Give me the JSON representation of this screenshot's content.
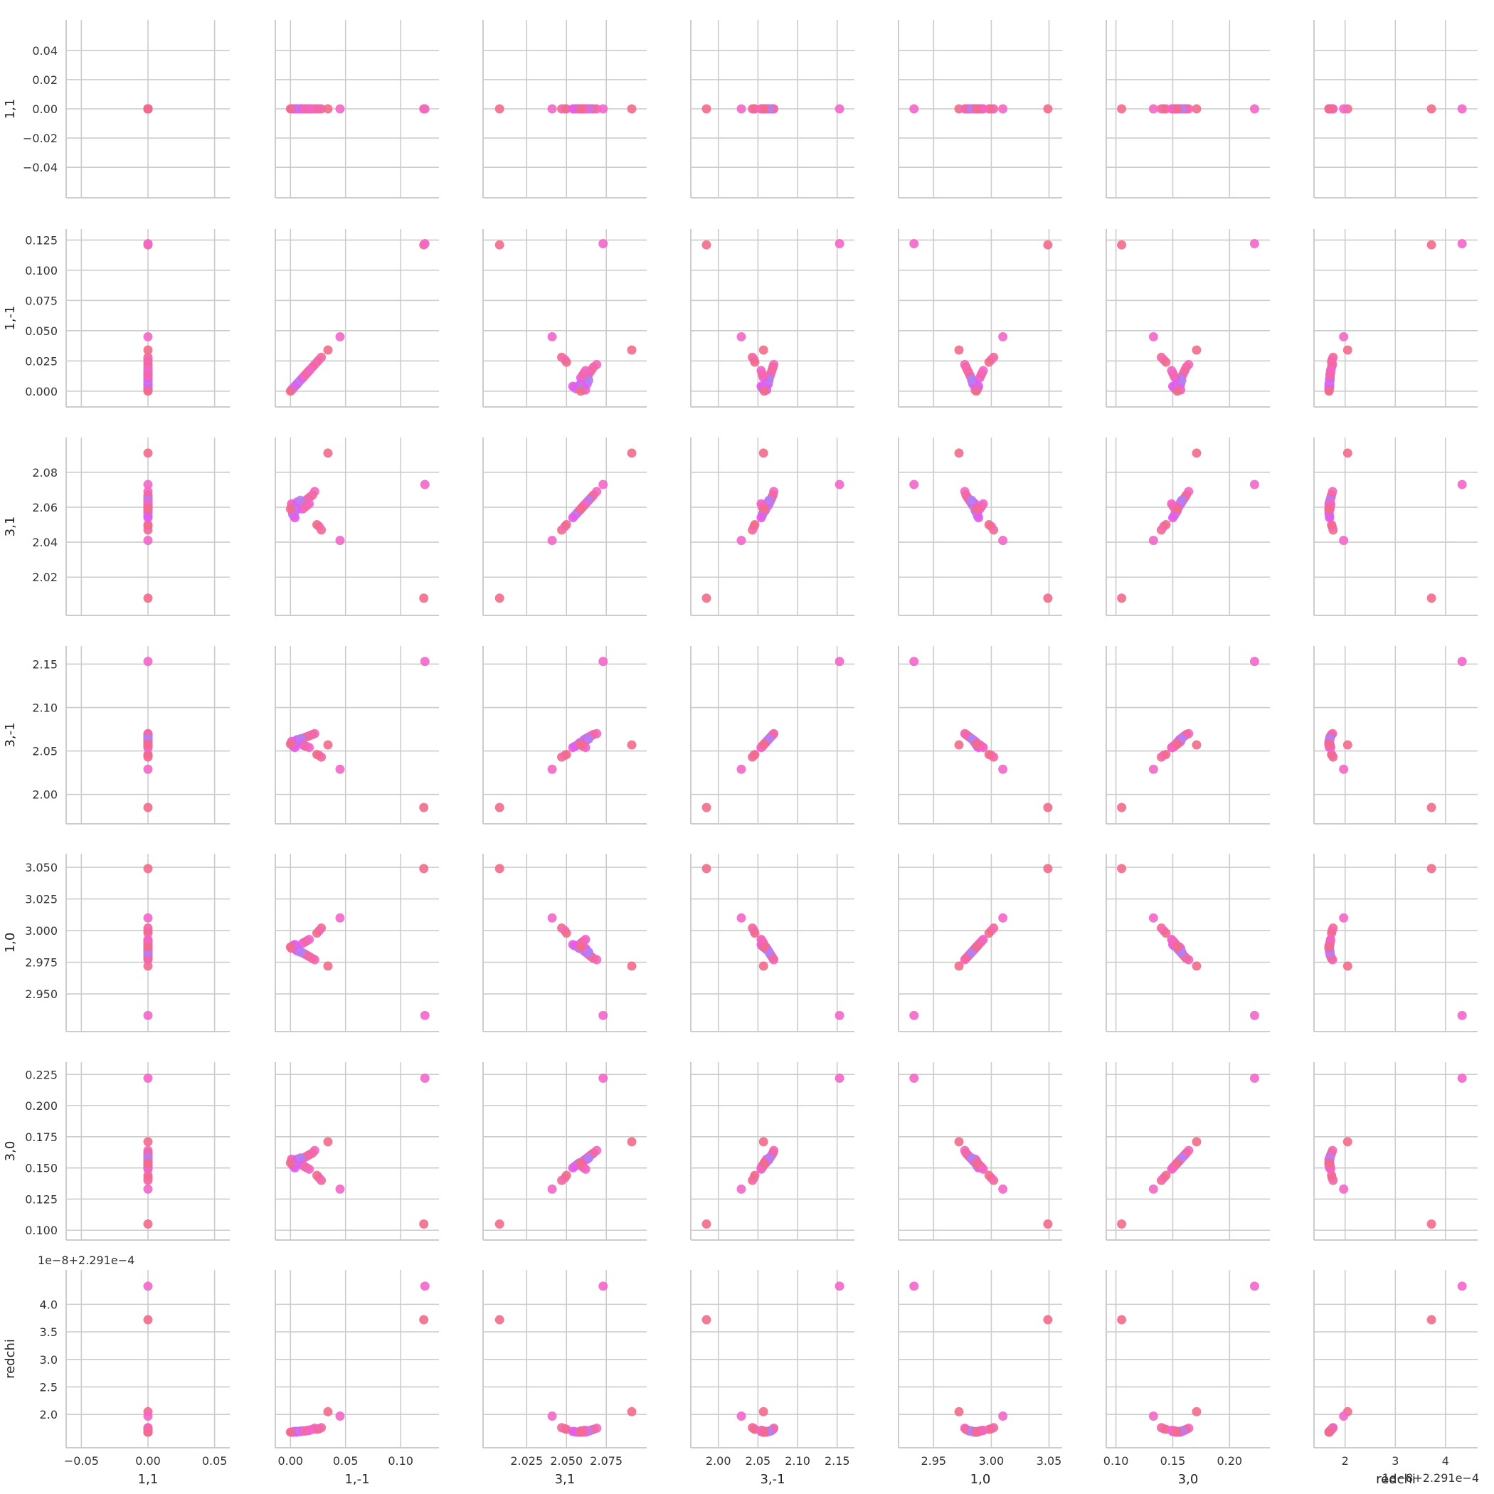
{
  "chart_data": {
    "type": "scatter",
    "layout": "pair-grid",
    "variables": [
      "1,1",
      "1,-1",
      "3,1",
      "3,-1",
      "1,0",
      "3,0",
      "redchi"
    ],
    "axes": [
      {
        "label": "1,1",
        "range": [
          -0.055,
          0.055
        ],
        "ticks": [
          -0.04,
          -0.02,
          0.0,
          0.02,
          0.04
        ],
        "tick_labels": [
          "−0.04",
          "−0.02",
          "0.00",
          "0.02",
          "0.04"
        ],
        "xticks": [
          -0.05,
          0.0,
          0.05
        ],
        "xtick_labels": [
          "−0.05",
          "0.00",
          "0.05"
        ]
      },
      {
        "label": "1,-1",
        "range": [
          -0.006,
          0.127
        ],
        "ticks": [
          0.0,
          0.025,
          0.05,
          0.075,
          0.1,
          0.125
        ],
        "tick_labels": [
          "0.000",
          "0.025",
          "0.050",
          "0.075",
          "0.100",
          "0.125"
        ],
        "xticks": [
          0.0,
          0.05,
          0.1
        ],
        "xtick_labels": [
          "0.00",
          "0.05",
          "0.10"
        ]
      },
      {
        "label": "3,1",
        "range": [
          2.003,
          2.095
        ],
        "ticks": [
          2.02,
          2.04,
          2.06,
          2.08
        ],
        "tick_labels": [
          "2.02",
          "2.04",
          "2.06",
          "2.08"
        ],
        "xticks": [
          2.025,
          2.05,
          2.075
        ],
        "xtick_labels": [
          "2.025",
          "2.050",
          "2.075"
        ]
      },
      {
        "label": "3,-1",
        "range": [
          1.976,
          2.161
        ],
        "ticks": [
          2.0,
          2.05,
          2.1,
          2.15
        ],
        "tick_labels": [
          "2.00",
          "2.05",
          "2.10",
          "2.15"
        ],
        "xticks": [
          2.0,
          2.05,
          2.1,
          2.15
        ],
        "xtick_labels": [
          "2.00",
          "2.05",
          "2.10",
          "2.15"
        ]
      },
      {
        "label": "1,0",
        "range": [
          2.927,
          3.054
        ],
        "ticks": [
          2.95,
          2.975,
          3.0,
          3.025,
          3.05
        ],
        "tick_labels": [
          "2.950",
          "2.975",
          "3.000",
          "3.025",
          "3.050"
        ],
        "xticks": [
          2.95,
          3.0,
          3.05
        ],
        "xtick_labels": [
          "2.95",
          "3.00",
          "3.05"
        ]
      },
      {
        "label": "3,0",
        "range": [
          0.099,
          0.228
        ],
        "ticks": [
          0.1,
          0.125,
          0.15,
          0.175,
          0.2,
          0.225
        ],
        "tick_labels": [
          "0.100",
          "0.125",
          "0.150",
          "0.175",
          "0.200",
          "0.225"
        ],
        "xticks": [
          0.1,
          0.15,
          0.2
        ],
        "xtick_labels": [
          "0.10",
          "0.15",
          "0.20"
        ]
      },
      {
        "label": "redchi",
        "range": [
          1.55,
          4.47
        ],
        "ticks": [
          2.0,
          2.5,
          3.0,
          3.5,
          4.0
        ],
        "tick_labels": [
          "2.0",
          "2.5",
          "3.0",
          "3.5",
          "4.0"
        ],
        "xticks": [
          2,
          3,
          4
        ],
        "xtick_labels": [
          "2",
          "3",
          "4"
        ],
        "offset_text": "1e−8+2.291e−4"
      }
    ],
    "marker_color_ramp": [
      "#f26b8a",
      "#f266c8",
      "#e85ce8",
      "#b47ff2"
    ],
    "series": [
      {
        "points": [
          [
            0,
            0.121,
            2.008,
            1.985,
            3.049,
            0.105,
            3.72
          ],
          [
            0,
            0.122,
            2.073,
            2.153,
            2.933,
            0.222,
            4.33
          ],
          [
            0,
            0.034,
            2.091,
            2.057,
            2.972,
            0.171,
            2.05
          ],
          [
            0,
            0.045,
            2.041,
            2.029,
            3.01,
            0.133,
            1.97
          ],
          [
            0,
            0.028,
            2.047,
            2.043,
            3.002,
            0.14,
            1.76
          ],
          [
            0,
            0.026,
            2.049,
            2.045,
            3.0,
            0.142,
            1.74
          ],
          [
            0,
            0.024,
            2.05,
            2.046,
            2.998,
            0.144,
            1.73
          ],
          [
            0,
            0.022,
            2.069,
            2.07,
            2.977,
            0.164,
            1.75
          ],
          [
            0,
            0.02,
            2.067,
            2.069,
            2.978,
            0.162,
            1.73
          ],
          [
            0,
            0.018,
            2.066,
            2.068,
            2.979,
            0.161,
            1.72
          ],
          [
            0,
            0.016,
            2.065,
            2.067,
            2.98,
            0.16,
            1.71
          ],
          [
            0,
            0.014,
            2.064,
            2.066,
            2.981,
            0.159,
            1.7
          ],
          [
            0,
            0.012,
            2.063,
            2.065,
            2.982,
            0.158,
            1.7
          ],
          [
            0,
            0.01,
            2.062,
            2.064,
            2.983,
            0.157,
            1.69
          ],
          [
            0,
            0.008,
            2.061,
            2.063,
            2.984,
            0.156,
            1.69
          ],
          [
            0,
            0.007,
            2.06,
            2.061,
            2.985,
            0.155,
            1.69
          ],
          [
            0,
            0.006,
            2.059,
            2.06,
            2.986,
            0.154,
            1.68
          ],
          [
            0,
            0.005,
            2.058,
            2.059,
            2.986,
            0.154,
            1.68
          ],
          [
            0,
            0.004,
            2.058,
            2.058,
            2.987,
            0.153,
            1.68
          ],
          [
            0,
            0.003,
            2.057,
            2.057,
            2.987,
            0.153,
            1.68
          ],
          [
            0,
            0.002,
            2.059,
            2.058,
            2.988,
            0.154,
            1.68
          ],
          [
            0,
            0.002,
            2.06,
            2.059,
            2.987,
            0.155,
            1.68
          ],
          [
            0,
            0.001,
            2.061,
            2.06,
            2.987,
            0.156,
            1.68
          ],
          [
            0,
            0.001,
            2.062,
            2.061,
            2.986,
            0.157,
            1.68
          ],
          [
            0,
            0.002,
            2.056,
            2.056,
            2.988,
            0.152,
            1.68
          ],
          [
            0,
            0.003,
            2.055,
            2.055,
            2.988,
            0.151,
            1.69
          ],
          [
            0,
            0.004,
            2.054,
            2.054,
            2.989,
            0.15,
            1.69
          ],
          [
            0,
            0.005,
            2.061,
            2.062,
            2.985,
            0.156,
            1.69
          ],
          [
            0,
            0.006,
            2.063,
            2.063,
            2.984,
            0.157,
            1.69
          ],
          [
            0,
            0.009,
            2.064,
            2.064,
            2.983,
            0.158,
            1.7
          ],
          [
            0,
            0.011,
            2.059,
            2.057,
            2.99,
            0.152,
            1.7
          ],
          [
            0,
            0.013,
            2.06,
            2.056,
            2.991,
            0.151,
            1.7
          ],
          [
            0,
            0.015,
            2.061,
            2.055,
            2.992,
            0.15,
            1.71
          ],
          [
            0,
            0.017,
            2.062,
            2.054,
            2.993,
            0.149,
            1.71
          ],
          [
            0,
            0.0,
            2.059,
            2.058,
            2.987,
            0.154,
            1.68
          ]
        ]
      }
    ]
  }
}
